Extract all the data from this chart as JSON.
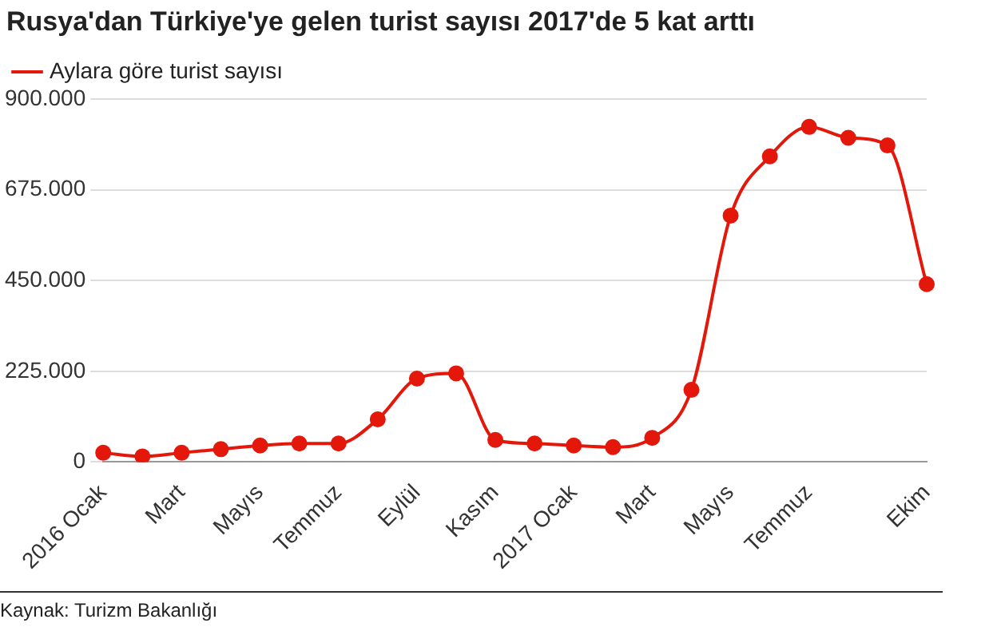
{
  "chart_data": {
    "type": "line",
    "title": "Rusya'dan Türkiye'ye gelen turist sayısı 2017'de 5 kat arttı",
    "categories": [
      "2016 Ocak",
      null,
      "Mart",
      null,
      "Mayıs",
      null,
      "Temmuz",
      null,
      "Eylül",
      null,
      "Kasım",
      null,
      "2017 Ocak",
      null,
      "Mart",
      null,
      "Mayıs",
      null,
      "Temmuz",
      null,
      null,
      "Ekim"
    ],
    "series": [
      {
        "name": "Aylara göre turist sayısı",
        "color": "#e3170a",
        "values": [
          23000,
          14000,
          23000,
          32000,
          41000,
          46000,
          46000,
          106000,
          207000,
          220000,
          55000,
          46000,
          41000,
          37000,
          60000,
          179000,
          611000,
          758000,
          831000,
          804000,
          785000,
          441000
        ]
      }
    ],
    "ylim": [
      0,
      900000
    ],
    "yticks": [
      {
        "value": 0,
        "label": "0"
      },
      {
        "value": 225000,
        "label": "225.000"
      },
      {
        "value": 450000,
        "label": "450.000"
      },
      {
        "value": 675000,
        "label": "675.000"
      },
      {
        "value": 900000,
        "label": "900.000"
      }
    ],
    "grid": "y",
    "legend": "top left",
    "marker": "circle",
    "line_style": "solid",
    "annotations": [
      "Kaynak: Turizm Bakanlığı"
    ]
  }
}
